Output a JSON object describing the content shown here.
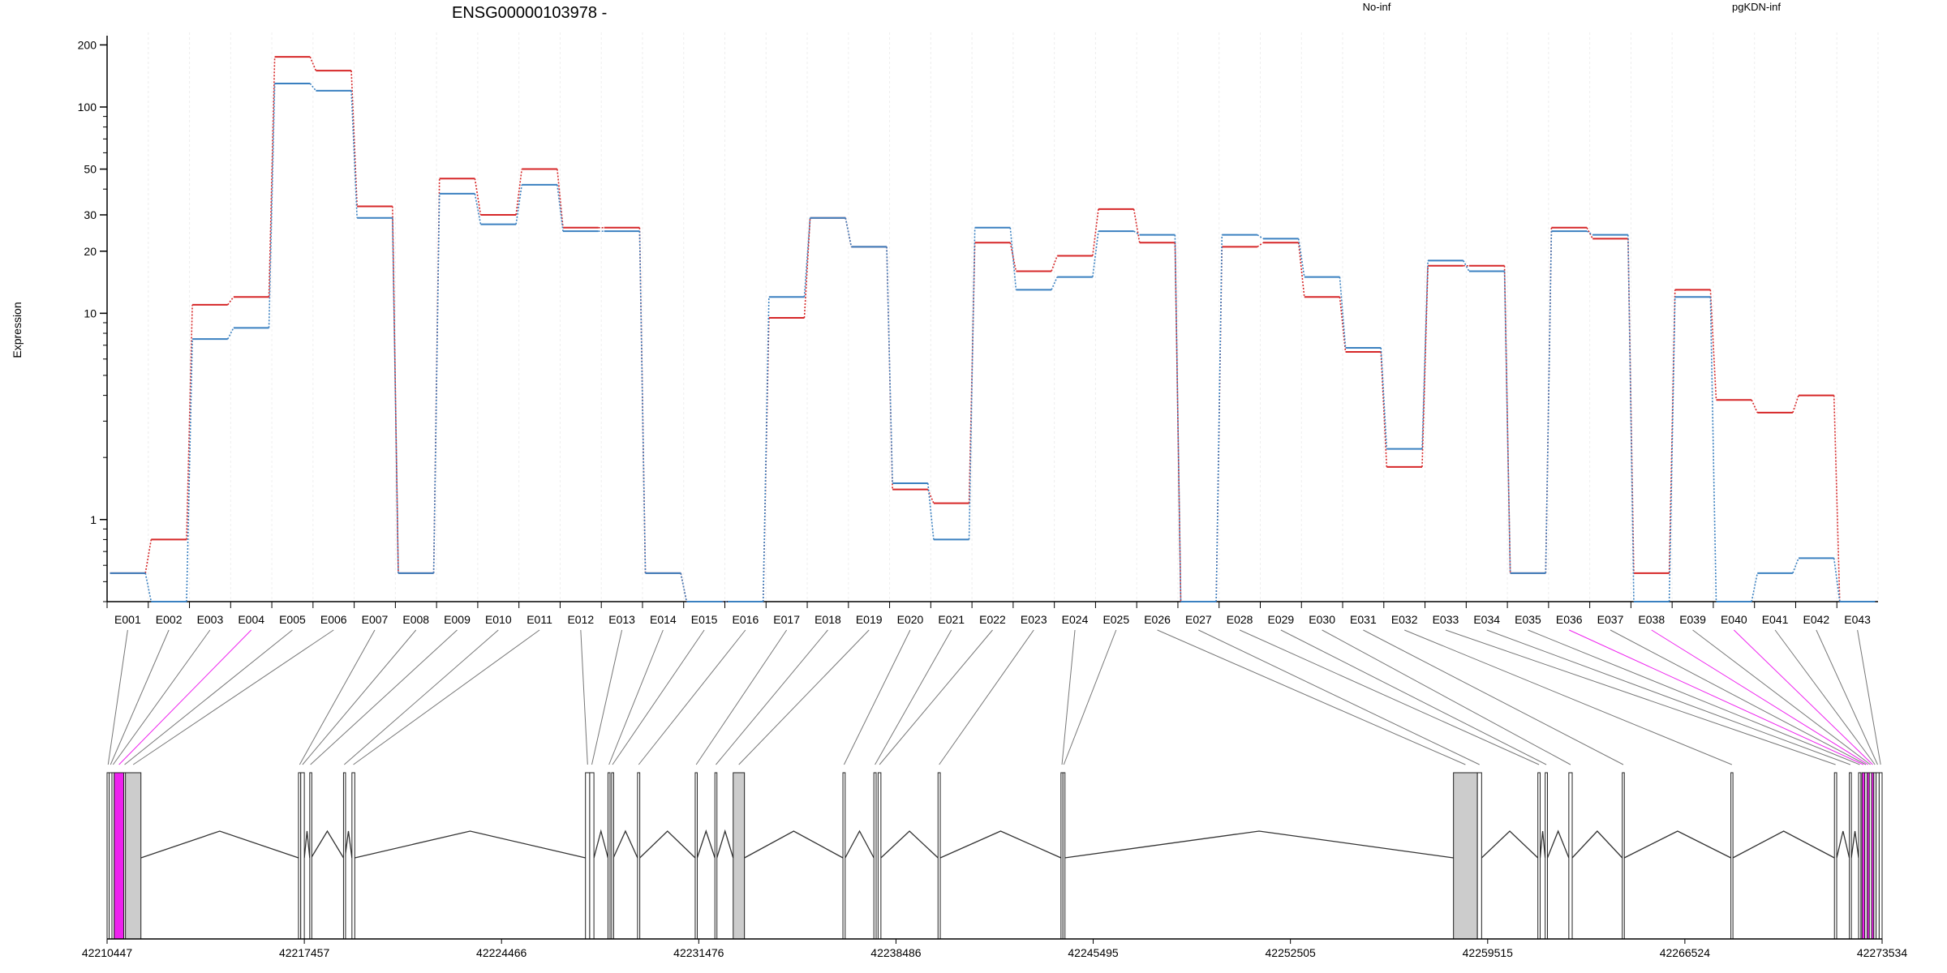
{
  "chart_data": {
    "type": "line",
    "title": "ENSG00000103978 -",
    "ylabel": "Expression",
    "xlabel": "",
    "y_scale": "log",
    "ylim": [
      0.4,
      210
    ],
    "y_ticks": [
      1,
      10,
      20,
      30,
      50,
      100,
      200
    ],
    "grid": "vertical",
    "legend_placement": "top",
    "colors": {
      "No-inf": "#d62728",
      "pgKDN-inf": "#3a80c0",
      "alt_exon": "#ee22ee"
    },
    "categories": [
      "E001",
      "E002",
      "E003",
      "E004",
      "E005",
      "E006",
      "E007",
      "E008",
      "E009",
      "E010",
      "E011",
      "E012",
      "E013",
      "E014",
      "E015",
      "E016",
      "E017",
      "E018",
      "E019",
      "E020",
      "E021",
      "E022",
      "E023",
      "E024",
      "E025",
      "E026",
      "E027",
      "E028",
      "E029",
      "E030",
      "E031",
      "E032",
      "E033",
      "E034",
      "E035",
      "E036",
      "E037",
      "E038",
      "E039",
      "E040",
      "E041",
      "E042",
      "E043"
    ],
    "series": [
      {
        "name": "No-inf",
        "color": "#d62728",
        "values": [
          0.55,
          0.8,
          11,
          12,
          175,
          150,
          33,
          0.55,
          45,
          30,
          50,
          26,
          26,
          0.55,
          0.4,
          0.4,
          9.5,
          29,
          21,
          1.4,
          1.2,
          22,
          16,
          19,
          32,
          22,
          0.4,
          21,
          22,
          12,
          6.5,
          1.8,
          17,
          17,
          0.55,
          26,
          23,
          0.55,
          13,
          3.8,
          3.3,
          4,
          0.4
        ]
      },
      {
        "name": "pgKDN-inf",
        "color": "#3a80c0",
        "values": [
          0.55,
          0.4,
          7.5,
          8.5,
          130,
          120,
          29,
          0.55,
          38,
          27,
          42,
          25,
          25,
          0.55,
          0.4,
          0.4,
          12,
          29,
          21,
          1.5,
          0.8,
          26,
          13,
          15,
          25,
          24,
          0.4,
          24,
          23,
          15,
          6.8,
          2.2,
          18,
          16,
          0.55,
          25,
          24,
          0.4,
          12,
          0.4,
          0.55,
          0.65,
          0.4
        ]
      }
    ],
    "genomic_axis": {
      "tick_labels": [
        "42210447",
        "42217457",
        "42224466",
        "42231476",
        "42238486",
        "42245495",
        "42252505",
        "42259515",
        "42266524",
        "42273534"
      ],
      "start": 42210447,
      "end": 42273534
    },
    "exons": [
      {
        "id": "E001",
        "start": 42210447,
        "end": 42210520
      },
      {
        "id": "E002",
        "start": 42210520,
        "end": 42210620
      },
      {
        "id": "E003",
        "start": 42210620,
        "end": 42210700
      },
      {
        "id": "E004",
        "start": 42210700,
        "end": 42211040,
        "alt": true
      },
      {
        "id": "E005",
        "start": 42211040,
        "end": 42211100
      },
      {
        "id": "E006",
        "start": 42211100,
        "end": 42211650
      },
      {
        "id": "E007",
        "start": 42217250,
        "end": 42217330
      },
      {
        "id": "E008",
        "start": 42217330,
        "end": 42217457
      },
      {
        "id": "E009",
        "start": 42217650,
        "end": 42217700
      },
      {
        "id": "E010",
        "start": 42218850,
        "end": 42218900
      },
      {
        "id": "E011",
        "start": 42219150,
        "end": 42219250
      },
      {
        "id": "E012",
        "start": 42227450,
        "end": 42227600
      },
      {
        "id": "E013",
        "start": 42227600,
        "end": 42227750
      },
      {
        "id": "E014",
        "start": 42228250,
        "end": 42228320
      },
      {
        "id": "E015",
        "start": 42228380,
        "end": 42228440
      },
      {
        "id": "E016",
        "start": 42229300,
        "end": 42229380
      },
      {
        "id": "E017",
        "start": 42231350,
        "end": 42231420
      },
      {
        "id": "E018",
        "start": 42232050,
        "end": 42232120
      },
      {
        "id": "E019",
        "start": 42232700,
        "end": 42233100
      },
      {
        "id": "E020",
        "start": 42236600,
        "end": 42236680
      },
      {
        "id": "E021",
        "start": 42237700,
        "end": 42237780
      },
      {
        "id": "E022",
        "start": 42237850,
        "end": 42237950
      },
      {
        "id": "E023",
        "start": 42239980,
        "end": 42240060
      },
      {
        "id": "E024",
        "start": 42244350,
        "end": 42244420
      },
      {
        "id": "E025",
        "start": 42244420,
        "end": 42244480
      },
      {
        "id": "E026",
        "start": 42258300,
        "end": 42259150
      },
      {
        "id": "E027",
        "start": 42259150,
        "end": 42259300
      },
      {
        "id": "E028",
        "start": 42261300,
        "end": 42261380
      },
      {
        "id": "E029",
        "start": 42261560,
        "end": 42261640
      },
      {
        "id": "E030",
        "start": 42262400,
        "end": 42262520
      },
      {
        "id": "E031",
        "start": 42264300,
        "end": 42264370
      },
      {
        "id": "E032",
        "start": 42268160,
        "end": 42268230
      },
      {
        "id": "E033",
        "start": 42271840,
        "end": 42271920
      },
      {
        "id": "E034",
        "start": 42272370,
        "end": 42272440
      },
      {
        "id": "E035",
        "start": 42272700,
        "end": 42272780
      },
      {
        "id": "E036",
        "start": 42272820,
        "end": 42272920,
        "alt": true
      },
      {
        "id": "E037",
        "start": 42272920,
        "end": 42273000
      },
      {
        "id": "E038",
        "start": 42273000,
        "end": 42273080,
        "alt": true
      },
      {
        "id": "E039",
        "start": 42273080,
        "end": 42273160
      },
      {
        "id": "E040",
        "start": 42273160,
        "end": 42273240,
        "alt": true
      },
      {
        "id": "E041",
        "start": 42273240,
        "end": 42273320
      },
      {
        "id": "E042",
        "start": 42273320,
        "end": 42273430
      },
      {
        "id": "E043",
        "start": 42273430,
        "end": 42273534
      }
    ],
    "annotations": []
  }
}
